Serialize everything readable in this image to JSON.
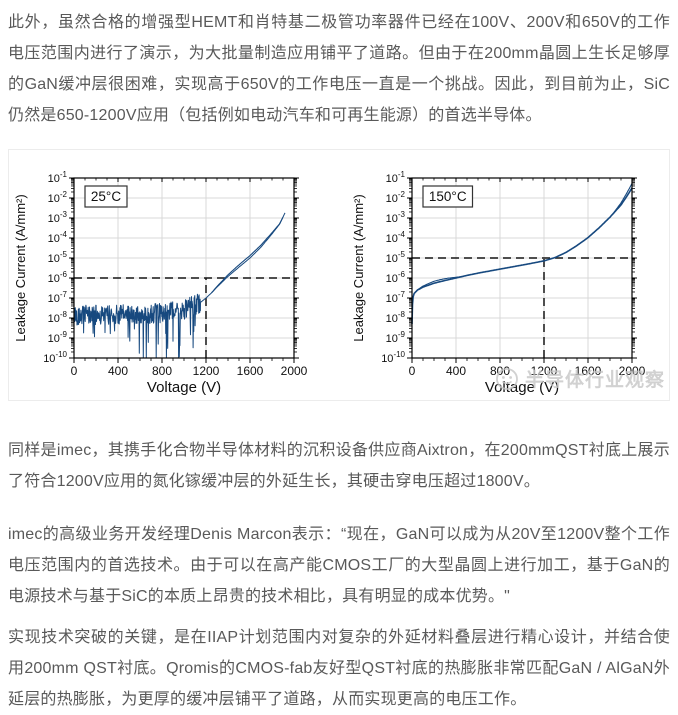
{
  "article": {
    "paragraphs": [
      {
        "text": "此外，虽然合格的增强型HEMT和肖特基二极管功率器件已经在100V、200V和650V的工作电压范围内进行了演示，为大批量制造应用铺平了道路。但由于在200mm晶圆上生长足够厚的GaN缓冲层很困难，实现高于650V的工作电压一直是一个挑战。因此，到目前为止，SiC仍然是650-1200V应用（包括例如电动汽车和可再生能源）的首选半导体。"
      },
      {
        "text": "同样是imec，其携手化合物半导体材料的沉积设备供应商Aixtron，在200mmQST衬底上展示了符合1200V应用的氮化镓缓冲层的外延生长，其硬击穿电压超过1800V。"
      },
      {
        "text": "imec的高级业务开发经理Denis Marcon表示：“现在，GaN可以成为从20V至1200V整个工作电压范围内的首选技术。由于可以在高产能CMOS工厂的大型晶圆上进行加工，基于GaN的电源技术与基于SiC的本质上昂贵的技术相比，具有明显的成本优势。\""
      },
      {
        "text": "实现技术突破的关键，是在IIAP计划范围内对复杂的外延材料叠层进行精心设计，并结合使用200mm QST衬底。Qromis的CMOS-fab友好型QST衬底的热膨胀非常匹配GaN / AlGaN外延层的热膨胀，为更厚的缓冲层铺平了道路，从而实现更高的电压工作。"
      }
    ]
  },
  "watermark": {
    "text": "半导体行业观察",
    "color": "#c6c6c6"
  },
  "colors": {
    "body_text": "#595959",
    "curve_blue": "#17497f",
    "grid": "#d9d9d9",
    "axis": "#111111",
    "dashed_reference": "#141414"
  },
  "chart_data": [
    {
      "type": "line",
      "annotation": "25°C",
      "xlabel": "Voltage (V)",
      "ylabel": "Leakage Current (A/mm²)",
      "xlim": [
        0,
        2000
      ],
      "xticks": [
        0,
        400,
        800,
        1200,
        1600,
        2000
      ],
      "x_minor_step": 100,
      "yscale": "log",
      "ylim_exp": [
        -10,
        -1
      ],
      "grid": true,
      "legend": "none",
      "line_color": "#17497f",
      "reference": {
        "x": 1200,
        "y": 1e-06
      },
      "series": [
        {
          "name": "leakage current 25C",
          "points": [
            [
              0,
              1.4e-08
            ],
            [
              200,
              1.4e-08
            ],
            [
              400,
              1.5e-08
            ],
            [
              600,
              1.6e-08
            ],
            [
              800,
              1.8e-08
            ],
            [
              1000,
              2.5e-08
            ],
            [
              1100,
              4.5e-08
            ],
            [
              1150,
              6e-08
            ],
            [
              1200,
              1e-07
            ],
            [
              1250,
              1.8e-07
            ],
            [
              1300,
              3.5e-07
            ],
            [
              1350,
              6.5e-07
            ],
            [
              1400,
              1.2e-06
            ],
            [
              1500,
              3.5e-06
            ],
            [
              1600,
              1e-05
            ],
            [
              1700,
              3.5e-05
            ],
            [
              1800,
              0.00016
            ],
            [
              1870,
              0.0005
            ],
            [
              1920,
              0.0019
            ]
          ]
        }
      ],
      "noise": {
        "v_end": 1150,
        "band_decades": 1.0,
        "spike_depth_decades": 2.2,
        "spike_center_v": 800,
        "seed": 42
      },
      "double_trace": {
        "from": 1250,
        "to": 1900,
        "offset_decades": 0.12
      }
    },
    {
      "type": "line",
      "annotation": "150°C",
      "xlabel": "Voltage (V)",
      "ylabel": "Leakage Current (A/mm²)",
      "xlim": [
        0,
        2000
      ],
      "xticks": [
        0,
        400,
        800,
        1200,
        1600,
        2000
      ],
      "x_minor_step": 100,
      "yscale": "log",
      "ylim_exp": [
        -10,
        -1
      ],
      "grid": true,
      "legend": "none",
      "line_color": "#17497f",
      "reference": {
        "x": 1200,
        "y": 1e-05
      },
      "series": [
        {
          "name": "leakage current 150C",
          "points": [
            [
              0,
              5e-09
            ],
            [
              3,
              3e-08
            ],
            [
              8,
              1e-07
            ],
            [
              20,
              1.7e-07
            ],
            [
              50,
              2.5e-07
            ],
            [
              100,
              3.5e-07
            ],
            [
              200,
              5.5e-07
            ],
            [
              300,
              7.5e-07
            ],
            [
              400,
              1e-06
            ],
            [
              500,
              1.35e-06
            ],
            [
              600,
              1.75e-06
            ],
            [
              700,
              2.2e-06
            ],
            [
              800,
              2.8e-06
            ],
            [
              900,
              3.5e-06
            ],
            [
              1000,
              4.4e-06
            ],
            [
              1100,
              5.6e-06
            ],
            [
              1200,
              7.2e-06
            ],
            [
              1300,
              1.05e-05
            ],
            [
              1400,
              1.9e-05
            ],
            [
              1500,
              4.2e-05
            ],
            [
              1600,
              0.000105
            ],
            [
              1700,
              0.00032
            ],
            [
              1800,
              0.0011
            ],
            [
              1900,
              0.0045
            ],
            [
              1960,
              0.014
            ],
            [
              2000,
              0.032
            ]
          ]
        }
      ],
      "double_trace": {
        "from": 30,
        "to": 450,
        "offset_decades": 0.1
      },
      "fan_trace": {
        "from": 1820,
        "to": 2000,
        "offset_decades": 0.22
      }
    }
  ]
}
